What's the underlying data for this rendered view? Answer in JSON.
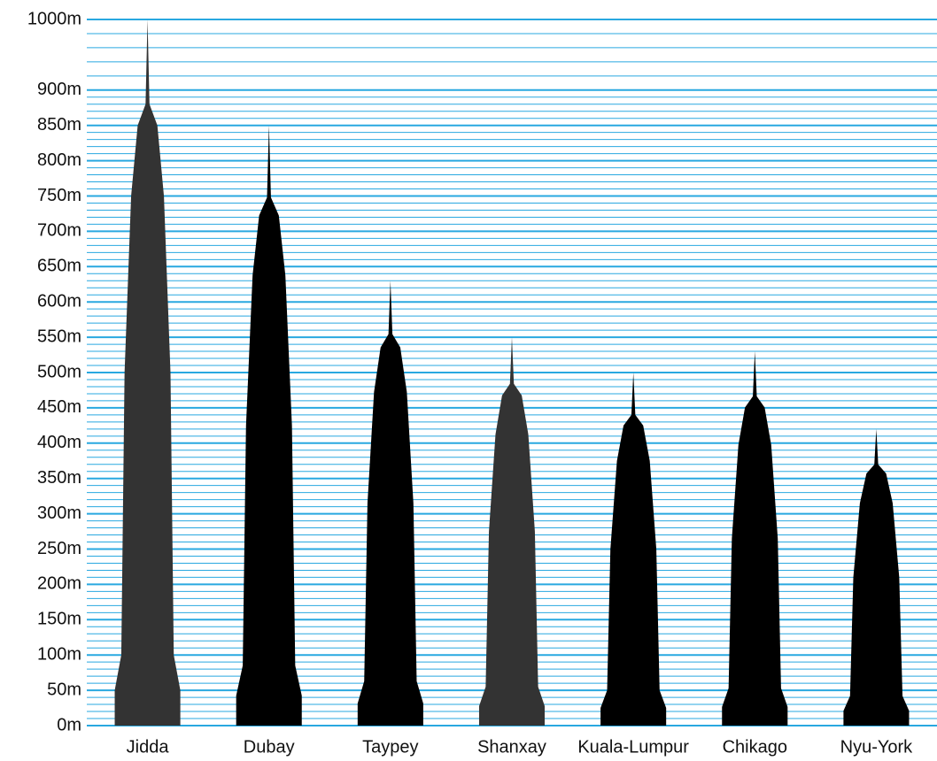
{
  "chart_data": {
    "type": "bar",
    "categories": [
      "Jidda",
      "Dubay",
      "Taypey",
      "Shanxay",
      "Kuala-Lumpur",
      "Chikago",
      "Nyu-York"
    ],
    "values": [
      1000,
      850,
      630,
      550,
      500,
      530,
      420
    ],
    "colors": [
      "#333333",
      "#000000",
      "#000000",
      "#333333",
      "#000000",
      "#000000",
      "#000000"
    ],
    "ylim": [
      0,
      1000
    ],
    "yticks": [
      {
        "value": 0,
        "label": "0m"
      },
      {
        "value": 50,
        "label": "50m"
      },
      {
        "value": 100,
        "label": "100m"
      },
      {
        "value": 150,
        "label": "150m"
      },
      {
        "value": 200,
        "label": "200m"
      },
      {
        "value": 250,
        "label": "250m"
      },
      {
        "value": 300,
        "label": "300m"
      },
      {
        "value": 350,
        "label": "350m"
      },
      {
        "value": 400,
        "label": "400m"
      },
      {
        "value": 450,
        "label": "450m"
      },
      {
        "value": 500,
        "label": "500m"
      },
      {
        "value": 550,
        "label": "550m"
      },
      {
        "value": 600,
        "label": "600m"
      },
      {
        "value": 650,
        "label": "650m"
      },
      {
        "value": 700,
        "label": "700m"
      },
      {
        "value": 750,
        "label": "750m"
      },
      {
        "value": 800,
        "label": "800m"
      },
      {
        "value": 850,
        "label": "850m"
      },
      {
        "value": 900,
        "label": "900m"
      },
      {
        "value": 1000,
        "label": "1000m"
      }
    ],
    "grid": true,
    "grid_color": "#29a8e0"
  }
}
